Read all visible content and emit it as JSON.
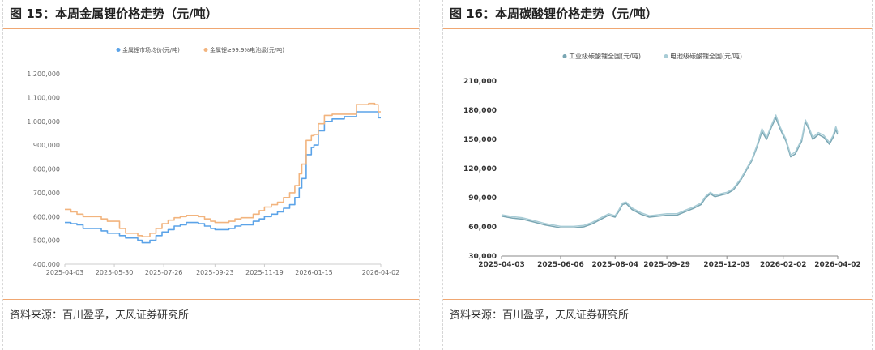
{
  "left": {
    "title": "图 15：本周金属锂价格走势（元/吨）",
    "source": "资料来源：百川盈孚，天风证券研究所"
  },
  "right": {
    "title": "图 16：本周碳酸锂价格走势（元/吨）",
    "source": "资料来源：百川盈孚，天风证券研究所"
  },
  "colors": {
    "accent_rule": "#f0a772",
    "series_blue": "#5ba3e8",
    "series_orange": "#f2b47e",
    "series_light": "#a8ccd6",
    "series_dark": "#79a6b3"
  },
  "chart_data": [
    {
      "type": "line",
      "title": "",
      "xlabel": "",
      "ylabel": "",
      "ylim": [
        400000,
        1200000
      ],
      "yticks": [
        "400,000",
        "500,000",
        "600,000",
        "700,000",
        "800,000",
        "900,000",
        "1,000,000",
        "1,100,000",
        "1,200,000"
      ],
      "xticks": [
        "2025-04-03",
        "2025-05-30",
        "2025-07-26",
        "2025-09-23",
        "2025-11-19",
        "2026-01-15",
        "2026-04-02"
      ],
      "legend_position": "top-center",
      "grid": false,
      "series": [
        {
          "name": "金属锂市场均价(元/吨)",
          "color": "#5ba3e8",
          "points": [
            [
              "2025-04-03",
              575000
            ],
            [
              "2025-04-10",
              570000
            ],
            [
              "2025-04-17",
              565000
            ],
            [
              "2025-04-24",
              550000
            ],
            [
              "2025-05-15",
              540000
            ],
            [
              "2025-05-22",
              530000
            ],
            [
              "2025-06-05",
              520000
            ],
            [
              "2025-06-12",
              510000
            ],
            [
              "2025-06-26",
              500000
            ],
            [
              "2025-07-01",
              490000
            ],
            [
              "2025-07-10",
              500000
            ],
            [
              "2025-07-17",
              520000
            ],
            [
              "2025-07-24",
              535000
            ],
            [
              "2025-07-31",
              545000
            ],
            [
              "2025-08-07",
              560000
            ],
            [
              "2025-08-14",
              565000
            ],
            [
              "2025-08-21",
              575000
            ],
            [
              "2025-09-04",
              570000
            ],
            [
              "2025-09-11",
              560000
            ],
            [
              "2025-09-18",
              550000
            ],
            [
              "2025-09-23",
              545000
            ],
            [
              "2025-10-09",
              550000
            ],
            [
              "2025-10-16",
              560000
            ],
            [
              "2025-10-23",
              565000
            ],
            [
              "2025-11-06",
              580000
            ],
            [
              "2025-11-13",
              590000
            ],
            [
              "2025-11-19",
              600000
            ],
            [
              "2025-11-27",
              610000
            ],
            [
              "2025-12-04",
              620000
            ],
            [
              "2025-12-11",
              635000
            ],
            [
              "2025-12-18",
              650000
            ],
            [
              "2025-12-24",
              680000
            ],
            [
              "2025-12-29",
              720000
            ],
            [
              "2026-01-01",
              760000
            ],
            [
              "2026-01-06",
              860000
            ],
            [
              "2026-01-12",
              890000
            ],
            [
              "2026-01-15",
              900000
            ],
            [
              "2026-01-20",
              960000
            ],
            [
              "2026-01-27",
              1000000
            ],
            [
              "2026-02-05",
              1010000
            ],
            [
              "2026-02-19",
              1020000
            ],
            [
              "2026-03-05",
              1040000
            ],
            [
              "2026-03-19",
              1040000
            ],
            [
              "2026-03-26",
              1040000
            ],
            [
              "2026-03-30",
              1015000
            ],
            [
              "2026-04-02",
              1015000
            ]
          ]
        },
        {
          "name": "金属锂≥99.9%电池级(元/吨)",
          "color": "#f2b47e",
          "points": [
            [
              "2025-04-03",
              630000
            ],
            [
              "2025-04-10",
              620000
            ],
            [
              "2025-04-17",
              610000
            ],
            [
              "2025-04-24",
              600000
            ],
            [
              "2025-05-15",
              590000
            ],
            [
              "2025-05-22",
              580000
            ],
            [
              "2025-06-05",
              550000
            ],
            [
              "2025-06-12",
              530000
            ],
            [
              "2025-06-26",
              520000
            ],
            [
              "2025-07-01",
              515000
            ],
            [
              "2025-07-10",
              530000
            ],
            [
              "2025-07-17",
              550000
            ],
            [
              "2025-07-24",
              570000
            ],
            [
              "2025-07-31",
              585000
            ],
            [
              "2025-08-07",
              595000
            ],
            [
              "2025-08-14",
              600000
            ],
            [
              "2025-08-21",
              605000
            ],
            [
              "2025-09-04",
              600000
            ],
            [
              "2025-09-11",
              590000
            ],
            [
              "2025-09-18",
              580000
            ],
            [
              "2025-09-23",
              575000
            ],
            [
              "2025-10-09",
              580000
            ],
            [
              "2025-10-16",
              590000
            ],
            [
              "2025-10-23",
              595000
            ],
            [
              "2025-11-06",
              610000
            ],
            [
              "2025-11-13",
              625000
            ],
            [
              "2025-11-19",
              640000
            ],
            [
              "2025-11-27",
              650000
            ],
            [
              "2025-12-04",
              660000
            ],
            [
              "2025-12-11",
              680000
            ],
            [
              "2025-12-18",
              700000
            ],
            [
              "2025-12-24",
              730000
            ],
            [
              "2025-12-29",
              780000
            ],
            [
              "2026-01-01",
              820000
            ],
            [
              "2026-01-06",
              920000
            ],
            [
              "2026-01-12",
              940000
            ],
            [
              "2026-01-15",
              945000
            ],
            [
              "2026-01-20",
              990000
            ],
            [
              "2026-01-27",
              1025000
            ],
            [
              "2026-02-05",
              1030000
            ],
            [
              "2026-02-19",
              1030000
            ],
            [
              "2026-03-05",
              1070000
            ],
            [
              "2026-03-19",
              1075000
            ],
            [
              "2026-03-26",
              1070000
            ],
            [
              "2026-03-30",
              1040000
            ],
            [
              "2026-04-02",
              1040000
            ]
          ]
        }
      ]
    },
    {
      "type": "line",
      "title": "",
      "xlabel": "",
      "ylabel": "",
      "ylim": [
        30000,
        210000
      ],
      "yticks": [
        "30,000",
        "60,000",
        "90,000",
        "120,000",
        "150,000",
        "180,000",
        "210,000"
      ],
      "xticks": [
        "2025-04-03",
        "2025-06-06",
        "2025-08-04",
        "2025-09-29",
        "2025-12-03",
        "2026-02-02",
        "2026-04-02"
      ],
      "legend_position": "top-center",
      "grid": false,
      "series": [
        {
          "name": "工业级碳酸锂全国(元/吨)",
          "color": "#79a6b3",
          "points": [
            [
              "2025-04-03",
              71000
            ],
            [
              "2025-04-15",
              69000
            ],
            [
              "2025-04-25",
              68000
            ],
            [
              "2025-05-08",
              65000
            ],
            [
              "2025-05-20",
              62000
            ],
            [
              "2025-06-06",
              59000
            ],
            [
              "2025-06-20",
              59000
            ],
            [
              "2025-07-01",
              60000
            ],
            [
              "2025-07-10",
              63000
            ],
            [
              "2025-07-20",
              68000
            ],
            [
              "2025-07-28",
              72000
            ],
            [
              "2025-08-04",
              70000
            ],
            [
              "2025-08-08",
              76000
            ],
            [
              "2025-08-12",
              83000
            ],
            [
              "2025-08-16",
              84000
            ],
            [
              "2025-08-22",
              78000
            ],
            [
              "2025-09-01",
              73000
            ],
            [
              "2025-09-10",
              70000
            ],
            [
              "2025-09-20",
              71000
            ],
            [
              "2025-09-29",
              72000
            ],
            [
              "2025-10-10",
              72000
            ],
            [
              "2025-10-20",
              76000
            ],
            [
              "2025-10-28",
              79000
            ],
            [
              "2025-11-05",
              83000
            ],
            [
              "2025-11-10",
              90000
            ],
            [
              "2025-11-15",
              94000
            ],
            [
              "2025-11-20",
              91000
            ],
            [
              "2025-11-28",
              93000
            ],
            [
              "2025-12-03",
              94000
            ],
            [
              "2025-12-10",
              98000
            ],
            [
              "2025-12-18",
              108000
            ],
            [
              "2025-12-24",
              118000
            ],
            [
              "2025-12-30",
              128000
            ],
            [
              "2026-01-05",
              143000
            ],
            [
              "2026-01-10",
              158000
            ],
            [
              "2026-01-15",
              150000
            ],
            [
              "2026-01-20",
              162000
            ],
            [
              "2026-01-25",
              172000
            ],
            [
              "2026-01-30",
              160000
            ],
            [
              "2026-02-05",
              148000
            ],
            [
              "2026-02-10",
              132000
            ],
            [
              "2026-02-15",
              135000
            ],
            [
              "2026-02-22",
              148000
            ],
            [
              "2026-02-26",
              168000
            ],
            [
              "2026-03-02",
              160000
            ],
            [
              "2026-03-06",
              150000
            ],
            [
              "2026-03-12",
              155000
            ],
            [
              "2026-03-18",
              152000
            ],
            [
              "2026-03-24",
              145000
            ],
            [
              "2026-03-28",
              152000
            ],
            [
              "2026-03-31",
              160000
            ],
            [
              "2026-04-02",
              155000
            ]
          ]
        },
        {
          "name": "电池级碳酸锂全国(元/吨)",
          "color": "#a8ccd6",
          "points": [
            [
              "2025-04-03",
              72500
            ],
            [
              "2025-04-15",
              70500
            ],
            [
              "2025-04-25",
              69500
            ],
            [
              "2025-05-08",
              66500
            ],
            [
              "2025-05-20",
              63500
            ],
            [
              "2025-06-06",
              60500
            ],
            [
              "2025-06-20",
              60500
            ],
            [
              "2025-07-01",
              61500
            ],
            [
              "2025-07-10",
              64500
            ],
            [
              "2025-07-20",
              69500
            ],
            [
              "2025-07-28",
              73500
            ],
            [
              "2025-08-04",
              71500
            ],
            [
              "2025-08-08",
              77500
            ],
            [
              "2025-08-12",
              84500
            ],
            [
              "2025-08-16",
              85500
            ],
            [
              "2025-08-22",
              79500
            ],
            [
              "2025-09-01",
              74500
            ],
            [
              "2025-09-10",
              71500
            ],
            [
              "2025-09-20",
              72500
            ],
            [
              "2025-09-29",
              73500
            ],
            [
              "2025-10-10",
              73500
            ],
            [
              "2025-10-20",
              77500
            ],
            [
              "2025-10-28",
              80500
            ],
            [
              "2025-11-05",
              84500
            ],
            [
              "2025-11-10",
              91500
            ],
            [
              "2025-11-15",
              95500
            ],
            [
              "2025-11-20",
              92500
            ],
            [
              "2025-11-28",
              94500
            ],
            [
              "2025-12-03",
              95500
            ],
            [
              "2025-12-10",
              99500
            ],
            [
              "2025-12-18",
              109500
            ],
            [
              "2025-12-24",
              119500
            ],
            [
              "2025-12-30",
              129500
            ],
            [
              "2026-01-05",
              145000
            ],
            [
              "2026-01-10",
              161000
            ],
            [
              "2026-01-15",
              152000
            ],
            [
              "2026-01-20",
              164000
            ],
            [
              "2026-01-25",
              175000
            ],
            [
              "2026-01-30",
              162000
            ],
            [
              "2026-02-05",
              150000
            ],
            [
              "2026-02-10",
              134000
            ],
            [
              "2026-02-15",
              137000
            ],
            [
              "2026-02-22",
              150000
            ],
            [
              "2026-02-26",
              170000
            ],
            [
              "2026-03-02",
              162000
            ],
            [
              "2026-03-06",
              152000
            ],
            [
              "2026-03-12",
              157000
            ],
            [
              "2026-03-18",
              154000
            ],
            [
              "2026-03-24",
              147000
            ],
            [
              "2026-03-28",
              154000
            ],
            [
              "2026-03-31",
              163000
            ],
            [
              "2026-04-02",
              157000
            ]
          ]
        }
      ]
    }
  ]
}
